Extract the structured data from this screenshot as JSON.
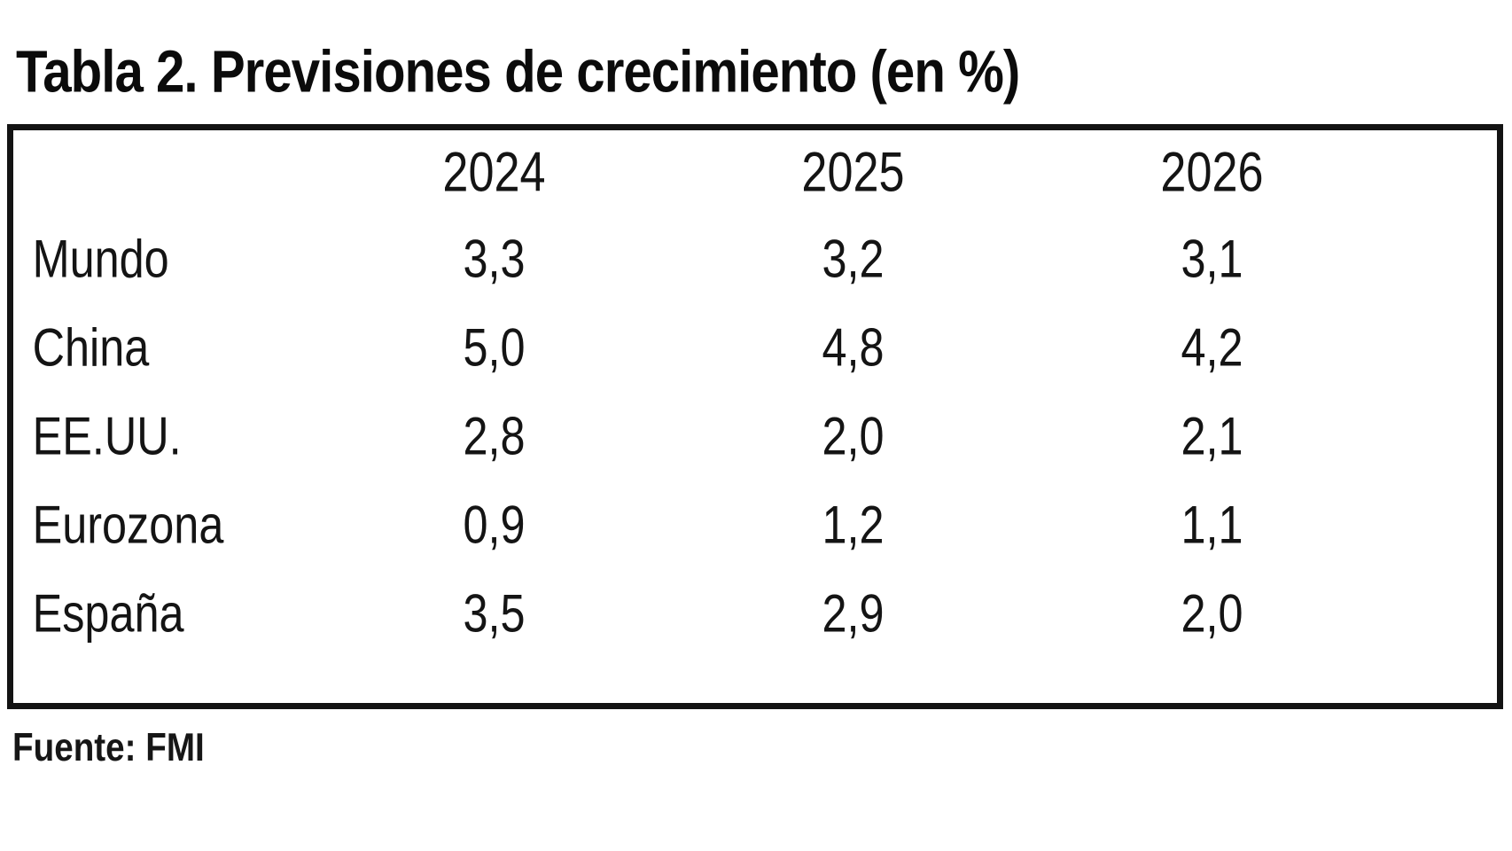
{
  "title": "Tabla 2. Previsiones de crecimiento (en %)",
  "source": "Fuente: FMI",
  "table": {
    "columns": [
      "2024",
      "2025",
      "2026"
    ],
    "rows": [
      {
        "label": "Mundo",
        "values": [
          "3,3",
          "3,2",
          "3,1"
        ]
      },
      {
        "label": "China",
        "values": [
          "5,0",
          "4,8",
          "4,2"
        ]
      },
      {
        "label": "EE.UU.",
        "values": [
          "2,8",
          "2,0",
          "2,1"
        ]
      },
      {
        "label": "Eurozona",
        "values": [
          "0,9",
          "1,2",
          "1,1"
        ]
      },
      {
        "label": "España",
        "values": [
          "3,5",
          "2,9",
          "2,0"
        ]
      }
    ]
  },
  "chart_data": {
    "type": "table",
    "title": "Tabla 2. Previsiones de crecimiento (en %)",
    "categories": [
      "2024",
      "2025",
      "2026"
    ],
    "series": [
      {
        "name": "Mundo",
        "values": [
          3.3,
          3.2,
          3.1
        ]
      },
      {
        "name": "China",
        "values": [
          5.0,
          4.8,
          4.2
        ]
      },
      {
        "name": "EE.UU.",
        "values": [
          2.8,
          2.0,
          2.1
        ]
      },
      {
        "name": "Eurozona",
        "values": [
          0.9,
          1.2,
          1.1
        ]
      },
      {
        "name": "España",
        "values": [
          3.5,
          2.9,
          2.0
        ]
      }
    ],
    "units": "percent",
    "source": "Fuente: FMI",
    "layout": {
      "header_row": true,
      "grid": "outer-border-only",
      "decimal_separator": ","
    }
  },
  "colors": {
    "background": "#ffffff",
    "text": "#0d0d0d",
    "border": "#131313"
  }
}
